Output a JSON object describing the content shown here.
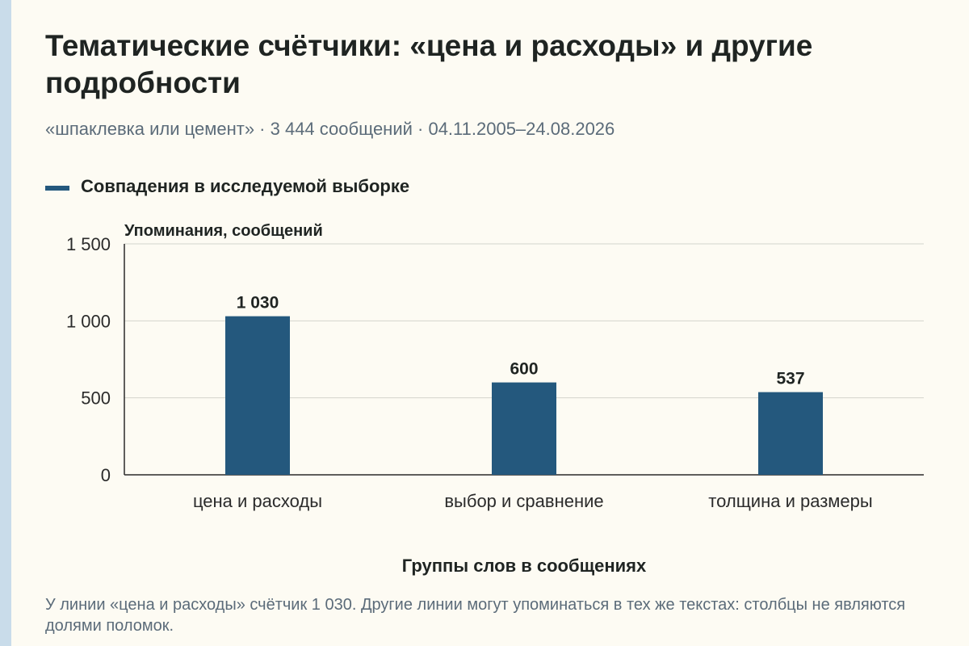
{
  "title": "Тематические счётчики: «цена и расходы» и другие подробности",
  "subtitle": "«шпаклевка или цемент» · 3 444 сообщений · 04.11.2005–24.08.2026",
  "footnote": "У линии «цена и расходы» счётчик 1 030. Другие линии могут упоминаться в тех же текстах: столбцы не являются долями поломок.",
  "colors": {
    "bar": "#24587d",
    "grid": "#d4d4cc",
    "axis": "#2b2b2b"
  },
  "chart_data": {
    "type": "bar",
    "categories": [
      "цена и расходы",
      "выбор и сравнение",
      "толщина и размеры"
    ],
    "series": [
      {
        "name": "Совпадения в исследуемой выборке",
        "values": [
          1030,
          600,
          537
        ]
      }
    ],
    "value_labels": [
      "1 030",
      "600",
      "537"
    ],
    "ylabel": "Упоминания, сообщений",
    "xlabel": "Группы слов в сообщениях",
    "ylim": [
      0,
      1500
    ],
    "yticks": [
      0,
      500,
      1000,
      1500
    ],
    "ytick_labels": [
      "0",
      "500",
      "1 000",
      "1 500"
    ],
    "grid": true,
    "legend": "top-left"
  }
}
